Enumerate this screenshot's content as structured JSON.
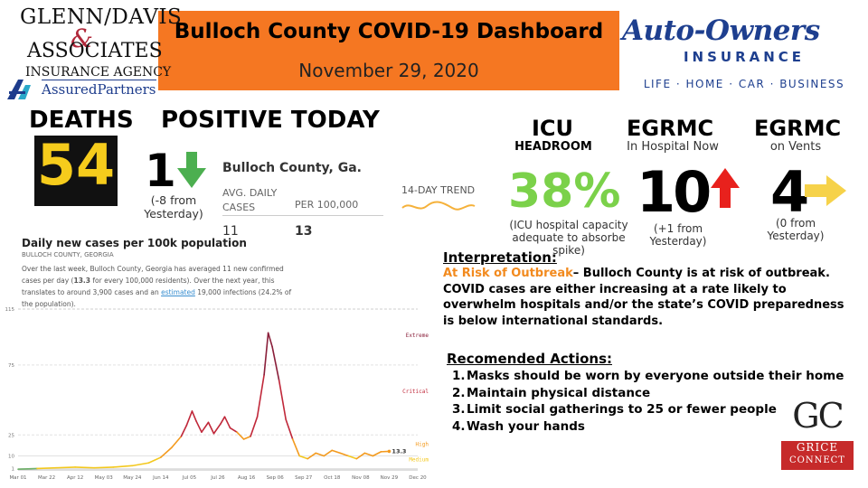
{
  "header": {
    "title": "Bulloch County COVID-19 Dashboard",
    "date": "November 29, 2020"
  },
  "sponsor_left": {
    "line1": "GLENN/DAVIS",
    "ampersand": "&",
    "line2": "ASSOCIATES",
    "line3": "INSURANCE AGENCY",
    "line4": "AssuredPartners"
  },
  "sponsor_right": {
    "name": "Auto-Owners",
    "line2": "INSURANCE",
    "tagline": "LIFE · HOME · CAR · BUSINESS"
  },
  "deaths": {
    "label": "DEATHS",
    "value": "54"
  },
  "positive_today": {
    "label": "POSITIVE TODAY",
    "value": "1",
    "note_line1": "(-8  from",
    "note_line2": "Yesterday)",
    "trend": "down",
    "arrow_color": "#4caf50"
  },
  "county_table": {
    "heading": "Bulloch County, Ga.",
    "col1_line1": "AVG. DAILY",
    "col1_line2": "CASES",
    "col2": "PER 100,000",
    "val1": "11",
    "val2": "13",
    "trend_label": "14-DAY TREND"
  },
  "icu": {
    "label": "ICU",
    "sub": "HEADROOM",
    "value": "38%",
    "note_line1": "(ICU hospital capacity",
    "note_line2": "adequate to absorbe spike)",
    "color": "#7bd14a"
  },
  "egrmc_hospital": {
    "label": "EGRMC",
    "sub": "In Hospital Now",
    "value": "10",
    "note_line1": "(+1 from",
    "note_line2": "Yesterday)",
    "trend": "up",
    "arrow_color": "#e8211d"
  },
  "egrmc_vents": {
    "label": "EGRMC",
    "sub": "on Vents",
    "value": "4",
    "note_line1": "(0 from",
    "note_line2": "Yesterday)",
    "trend": "flat",
    "arrow_color": "#f6d24a"
  },
  "chart_panel": {
    "title": "Daily new cases per 100k population",
    "subtitle": "BULLOCH COUNTY, GEORGIA",
    "desc_part1": "Over the last week, Bulloch County, Georgia has averaged 11 new confirmed cases per day (",
    "desc_bold": "13.3",
    "desc_part2": " for every 100,000 residents). Over the next year, this translates to around 3,900 cases and an ",
    "desc_link": "estimated",
    "desc_part3": " 19,000 infections (24.2% of the population)."
  },
  "chart_data": {
    "type": "line",
    "title": "Daily new cases per 100k population",
    "x_tick_labels": [
      "Mar 01",
      "Mar 22",
      "Apr 12",
      "May 03",
      "May 24",
      "Jun 14",
      "Jul 05",
      "Jul 26",
      "Aug 16",
      "Sep 06",
      "Sep 27",
      "Oct 18",
      "Nov 08",
      "Nov 29",
      "Dec 20"
    ],
    "y_ticks": [
      1,
      10,
      25,
      75,
      115
    ],
    "ylim": [
      0,
      115
    ],
    "zones": [
      {
        "name": "Extreme",
        "color": "#8a1f3a"
      },
      {
        "name": "Critical",
        "color": "#c0283a"
      },
      {
        "name": "High",
        "color": "#f39a1e"
      },
      {
        "name": "Medium",
        "color": "#f3c81e"
      }
    ],
    "current_value_label": "13.3",
    "series": [
      {
        "points": [
          [
            "Mar 01",
            0.5
          ],
          [
            "Mar 15",
            1
          ],
          [
            "Mar 29",
            1.5
          ],
          [
            "Apr 12",
            2
          ],
          [
            "Apr 26",
            1.5
          ],
          [
            "May 10",
            2
          ],
          [
            "May 24",
            3
          ],
          [
            "Jun 05",
            5
          ],
          [
            "Jun 14",
            9
          ],
          [
            "Jun 22",
            16
          ],
          [
            "Jun 29",
            24
          ],
          [
            "Jul 03",
            32
          ],
          [
            "Jul 07",
            42
          ],
          [
            "Jul 10",
            35
          ],
          [
            "Jul 14",
            27
          ],
          [
            "Jul 19",
            34
          ],
          [
            "Jul 23",
            26
          ],
          [
            "Jul 28",
            33
          ],
          [
            "Jul 31",
            38
          ],
          [
            "Aug 04",
            30
          ],
          [
            "Aug 09",
            27
          ],
          [
            "Aug 14",
            22
          ],
          [
            "Aug 19",
            24
          ],
          [
            "Aug 24",
            38
          ],
          [
            "Aug 29",
            68
          ],
          [
            "Sep 01",
            98
          ],
          [
            "Sep 04",
            88
          ],
          [
            "Sep 09",
            64
          ],
          [
            "Sep 14",
            36
          ],
          [
            "Sep 19",
            22
          ],
          [
            "Sep 24",
            10
          ],
          [
            "Sep 30",
            8
          ],
          [
            "Oct 06",
            12
          ],
          [
            "Oct 12",
            10
          ],
          [
            "Oct 18",
            14
          ],
          [
            "Oct 24",
            12
          ],
          [
            "Oct 30",
            10
          ],
          [
            "Nov 05",
            8
          ],
          [
            "Nov 11",
            12
          ],
          [
            "Nov 17",
            10
          ],
          [
            "Nov 23",
            13
          ],
          [
            "Nov 29",
            13.3
          ]
        ]
      }
    ]
  },
  "interpretation": {
    "heading": "Interpretation:",
    "risk": "At Risk of Outbreak",
    "text": "– Bulloch County is at risk of outbreak. COVID cases are either increasing at a rate likely to overwhelm hospitals and/or the state’s COVID preparedness is below international standards."
  },
  "actions": {
    "heading": "Recomended Actions:",
    "items": [
      "Masks should be worn by everyone outside their home",
      "Maintain physical distance",
      "Limit social gatherings to 25 or fewer people",
      "Wash your hands"
    ]
  },
  "grice": {
    "letters": "GC",
    "word1": "GRICE",
    "word2": "CONNECT"
  }
}
